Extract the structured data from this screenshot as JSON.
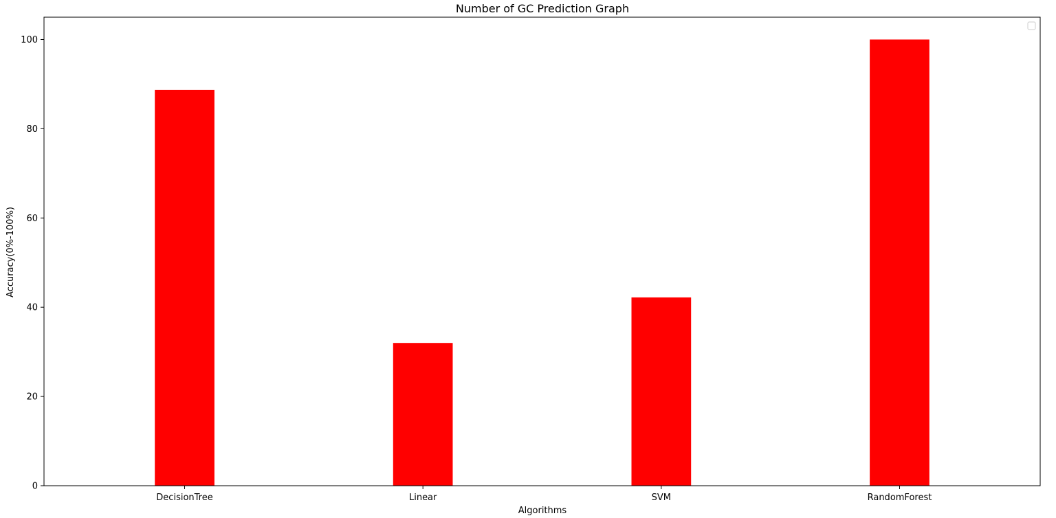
{
  "chart_data": {
    "type": "bar",
    "title": "Number of GC Prediction Graph",
    "xlabel": "Algorithms",
    "ylabel": "Accuracy(0%-100%)",
    "categories": [
      "DecisionTree",
      "Linear",
      "SVM",
      "RandomForest"
    ],
    "values": [
      88.7,
      32.0,
      42.2,
      100.0
    ],
    "ylim": [
      0,
      105
    ],
    "yticks": [
      0,
      20,
      40,
      60,
      80,
      100
    ],
    "grid": false,
    "legend": "top-right (empty)",
    "colors": {
      "bar": "#ff0000",
      "axes": "#000000",
      "background": "#ffffff"
    }
  }
}
